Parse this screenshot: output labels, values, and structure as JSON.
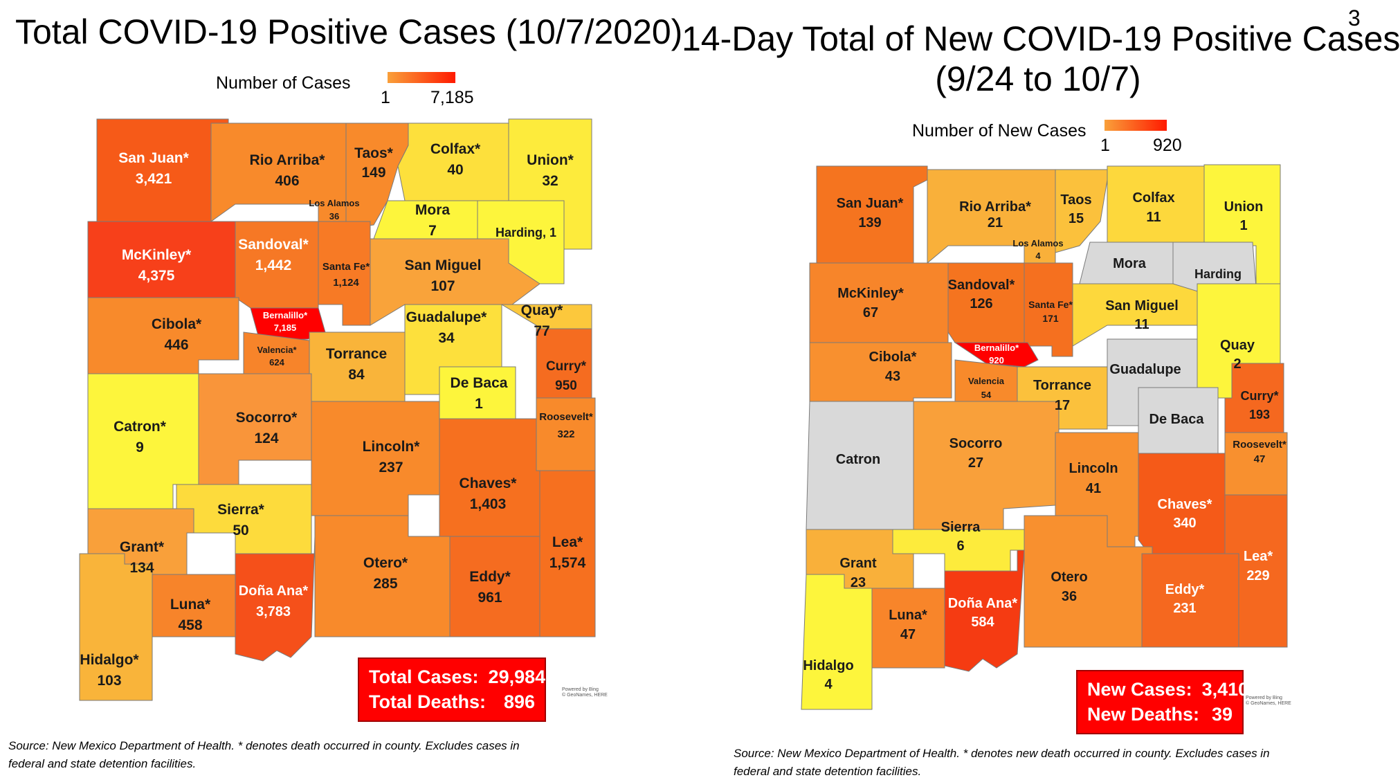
{
  "page_number": "3",
  "left": {
    "title": "Total COVID-19 Positive Cases (10/7/2020)",
    "legend": {
      "label": "Number of Cases",
      "min": "1",
      "max": "7,185"
    },
    "totals": {
      "cases_label": "Total Cases:",
      "cases_value": "29,984",
      "deaths_label": "Total Deaths:",
      "deaths_value": "896"
    },
    "powered": {
      "line1": "Powered by Bing",
      "line2": "© GeoNames, HERE"
    },
    "source_line1": "Source: New Mexico Department of Health. * denotes death occurred in county. Excludes cases in",
    "source_line2": "federal and state detention facilities.",
    "counties": [
      {
        "name": "San Juan*",
        "value": "3,421",
        "color": "#f65a18",
        "text": "white"
      },
      {
        "name": "Rio Arriba*",
        "value": "406",
        "color": "#f88a2b",
        "text": "dark"
      },
      {
        "name": "Taos*",
        "value": "149",
        "color": "#f88a2b",
        "text": "dark"
      },
      {
        "name": "Colfax*",
        "value": "40",
        "color": "#fde03c",
        "text": "dark"
      },
      {
        "name": "Union*",
        "value": "32",
        "color": "#fdeb3c",
        "text": "dark"
      },
      {
        "name": "Los Alamos",
        "value": "36",
        "color": "#fde03c",
        "text": "dark"
      },
      {
        "name": "Mora",
        "value": "7",
        "color": "#fdf53c",
        "text": "dark"
      },
      {
        "name": "Harding, 1",
        "value": "",
        "color": "#fdf53c",
        "text": "dark"
      },
      {
        "name": "McKinley*",
        "value": "4,375",
        "color": "#f7401a",
        "text": "white"
      },
      {
        "name": "Sandoval*",
        "value": "1,442",
        "color": "#f67825",
        "text": "white"
      },
      {
        "name": "Santa Fe*",
        "value": "1,124",
        "color": "#f77a25",
        "text": "dark"
      },
      {
        "name": "San Miguel",
        "value": "107",
        "color": "#f9a33a",
        "text": "dark"
      },
      {
        "name": "Bernalillo*",
        "value": "7,185",
        "color": "#ff0000",
        "text": "white"
      },
      {
        "name": "Cibola*",
        "value": "446",
        "color": "#f88a2b",
        "text": "dark"
      },
      {
        "name": "Valencia*",
        "value": "624",
        "color": "#f7842a",
        "text": "dark"
      },
      {
        "name": "Torrance",
        "value": "84",
        "color": "#f9b43a",
        "text": "dark"
      },
      {
        "name": "Guadalupe*",
        "value": "34",
        "color": "#fde03c",
        "text": "dark"
      },
      {
        "name": "Quay*",
        "value": "77",
        "color": "#fcc83c",
        "text": "dark"
      },
      {
        "name": "De Baca",
        "value": "1",
        "color": "#fdf53c",
        "text": "dark"
      },
      {
        "name": "Curry*",
        "value": "950",
        "color": "#f56c20",
        "text": "dark"
      },
      {
        "name": "Roosevelt*",
        "value": "322",
        "color": "#f88a2b",
        "text": "dark"
      },
      {
        "name": "Catron*",
        "value": "9",
        "color": "#fdf53c",
        "text": "dark"
      },
      {
        "name": "Socorro*",
        "value": "124",
        "color": "#f9953a",
        "text": "dark"
      },
      {
        "name": "Lincoln*",
        "value": "237",
        "color": "#f88a2b",
        "text": "dark"
      },
      {
        "name": "Chaves*",
        "value": "1,403",
        "color": "#f6701f",
        "text": "dark"
      },
      {
        "name": "Sierra*",
        "value": "50",
        "color": "#fddb3c",
        "text": "dark"
      },
      {
        "name": "Grant*",
        "value": "134",
        "color": "#f9a03a",
        "text": "dark"
      },
      {
        "name": "Luna*",
        "value": "458",
        "color": "#f7842a",
        "text": "dark"
      },
      {
        "name": "Doña Ana*",
        "value": "3,783",
        "color": "#f5501a",
        "text": "white"
      },
      {
        "name": "Otero*",
        "value": "285",
        "color": "#f88a2b",
        "text": "dark"
      },
      {
        "name": "Eddy*",
        "value": "961",
        "color": "#f56c20",
        "text": "dark"
      },
      {
        "name": "Lea*",
        "value": "1,574",
        "color": "#f6701f",
        "text": "dark"
      },
      {
        "name": "Hidalgo*",
        "value": "103",
        "color": "#f9b43a",
        "text": "dark"
      }
    ]
  },
  "right": {
    "title_line1": "14-Day Total of New COVID-19 Positive Cases",
    "title_line2": "(9/24 to 10/7)",
    "legend": {
      "label": "Number of New Cases",
      "min": "1",
      "max": "920"
    },
    "totals": {
      "cases_label": "New Cases:",
      "cases_value": "3,410",
      "deaths_label": "New Deaths:",
      "deaths_value": "39"
    },
    "powered": {
      "line1": "Powered by Bing",
      "line2": "© GeoNames, HERE"
    },
    "source_line1": "Source: New Mexico Department of Health. * denotes new death occurred in county. Excludes cases in",
    "source_line2": "federal and state detention facilities.",
    "counties": [
      {
        "name": "San Juan*",
        "value": "139",
        "color": "#f5741f",
        "text": "dark"
      },
      {
        "name": "Rio Arriba*",
        "value": "21",
        "color": "#f9b03a",
        "text": "dark"
      },
      {
        "name": "Taos",
        "value": "15",
        "color": "#fbc13c",
        "text": "dark"
      },
      {
        "name": "Colfax",
        "value": "11",
        "color": "#fdd83c",
        "text": "dark"
      },
      {
        "name": "Union",
        "value": "1",
        "color": "#fdf53c",
        "text": "dark"
      },
      {
        "name": "Los Alamos",
        "value": "4",
        "color": "#fde03c",
        "text": "dark"
      },
      {
        "name": "Mora",
        "value": "",
        "color": "#d9d9d9",
        "text": "dark"
      },
      {
        "name": "Harding",
        "value": "",
        "color": "#d9d9d9",
        "text": "dark"
      },
      {
        "name": "McKinley*",
        "value": "67",
        "color": "#f7852a",
        "text": "dark"
      },
      {
        "name": "Sandoval*",
        "value": "126",
        "color": "#f5741f",
        "text": "dark"
      },
      {
        "name": "Santa Fe*",
        "value": "171",
        "color": "#f5701f",
        "text": "dark"
      },
      {
        "name": "San Miguel",
        "value": "11",
        "color": "#fdd83c",
        "text": "dark"
      },
      {
        "name": "Bernalillo*",
        "value": "920",
        "color": "#ff0000",
        "text": "white"
      },
      {
        "name": "Cibola*",
        "value": "43",
        "color": "#f8902f",
        "text": "dark"
      },
      {
        "name": "Valencia",
        "value": "54",
        "color": "#f88a2b",
        "text": "dark"
      },
      {
        "name": "Torrance",
        "value": "17",
        "color": "#fbc13c",
        "text": "dark"
      },
      {
        "name": "Guadalupe",
        "value": "",
        "color": "#d9d9d9",
        "text": "dark"
      },
      {
        "name": "Quay",
        "value": "2",
        "color": "#fdf53c",
        "text": "dark"
      },
      {
        "name": "De Baca",
        "value": "",
        "color": "#d9d9d9",
        "text": "dark"
      },
      {
        "name": "Curry*",
        "value": "193",
        "color": "#f5681f",
        "text": "dark"
      },
      {
        "name": "Roosevelt*",
        "value": "47",
        "color": "#f8902f",
        "text": "dark"
      },
      {
        "name": "Catron",
        "value": "",
        "color": "#d9d9d9",
        "text": "dark"
      },
      {
        "name": "Socorro",
        "value": "27",
        "color": "#f9a03a",
        "text": "dark"
      },
      {
        "name": "Lincoln",
        "value": "41",
        "color": "#f8902f",
        "text": "dark"
      },
      {
        "name": "Chaves*",
        "value": "340",
        "color": "#f55a18",
        "text": "white"
      },
      {
        "name": "Sierra",
        "value": "6",
        "color": "#fdeb3c",
        "text": "dark"
      },
      {
        "name": "Grant",
        "value": "23",
        "color": "#f9b03a",
        "text": "dark"
      },
      {
        "name": "Luna*",
        "value": "47",
        "color": "#f8852a",
        "text": "dark"
      },
      {
        "name": "Doña Ana*",
        "value": "584",
        "color": "#f53b12",
        "text": "white"
      },
      {
        "name": "Otero",
        "value": "36",
        "color": "#f8902f",
        "text": "dark"
      },
      {
        "name": "Eddy*",
        "value": "231",
        "color": "#f5681f",
        "text": "white"
      },
      {
        "name": "Lea*",
        "value": "229",
        "color": "#f5681f",
        "text": "white"
      },
      {
        "name": "Hidalgo",
        "value": "4",
        "color": "#fdf53c",
        "text": "dark"
      }
    ]
  }
}
